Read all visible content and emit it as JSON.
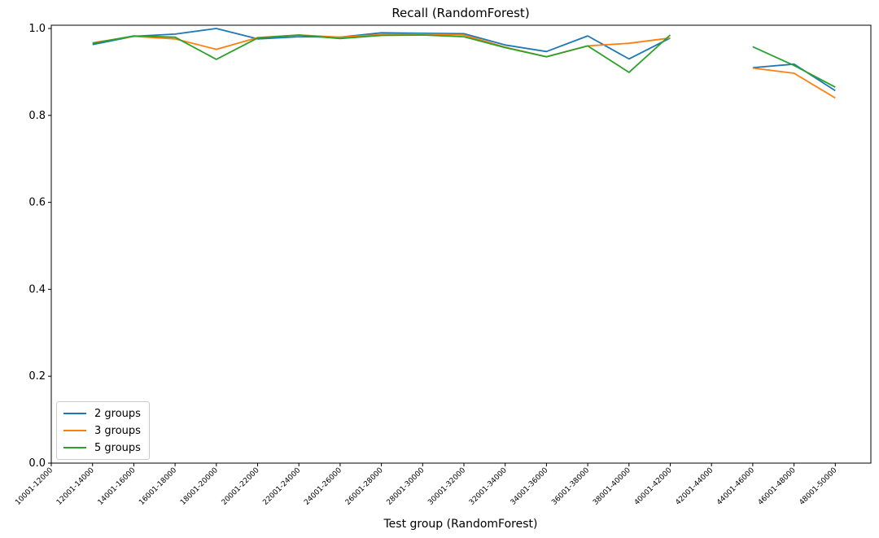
{
  "chart_data": {
    "type": "line",
    "title": "Recall (RandomForest)",
    "xlabel": "Test group (RandomForest)",
    "ylabel": "",
    "ylim": [
      0,
      1.0
    ],
    "yticks": [
      "0.0",
      "0.2",
      "0.4",
      "0.6",
      "0.8",
      "1.0"
    ],
    "categories": [
      "10001-12000",
      "12001-14000",
      "14001-16000",
      "16001-18000",
      "18001-20000",
      "20001-22000",
      "22001-24000",
      "24001-26000",
      "26001-28000",
      "28001-30000",
      "30001-32000",
      "32001-34000",
      "34001-36000",
      "36001-38000",
      "38001-40000",
      "40001-42000",
      "42001-44000",
      "44001-46000",
      "46001-48000",
      "48001-50000"
    ],
    "legend_position": "lower-left",
    "grid": false,
    "series": [
      {
        "name": "2 groups",
        "color": "#1f77b4",
        "values": [
          null,
          0.963,
          0.982,
          0.987,
          1.0,
          0.976,
          0.981,
          0.98,
          0.99,
          0.989,
          0.988,
          0.962,
          0.947,
          0.983,
          0.93,
          0.978,
          null,
          0.91,
          0.918,
          0.857
        ]
      },
      {
        "name": "3 groups",
        "color": "#ff7f0e",
        "values": [
          null,
          0.967,
          0.982,
          0.976,
          0.952,
          0.979,
          0.985,
          0.98,
          0.986,
          0.987,
          0.985,
          0.957,
          0.935,
          0.96,
          0.966,
          0.978,
          null,
          0.909,
          0.897,
          0.84
        ]
      },
      {
        "name": "5 groups",
        "color": "#2ca02c",
        "values": [
          null,
          0.966,
          0.983,
          0.98,
          0.929,
          0.978,
          0.985,
          0.977,
          0.984,
          0.985,
          0.981,
          0.956,
          0.935,
          0.96,
          0.899,
          0.985,
          null,
          0.958,
          0.915,
          0.865
        ]
      }
    ]
  }
}
